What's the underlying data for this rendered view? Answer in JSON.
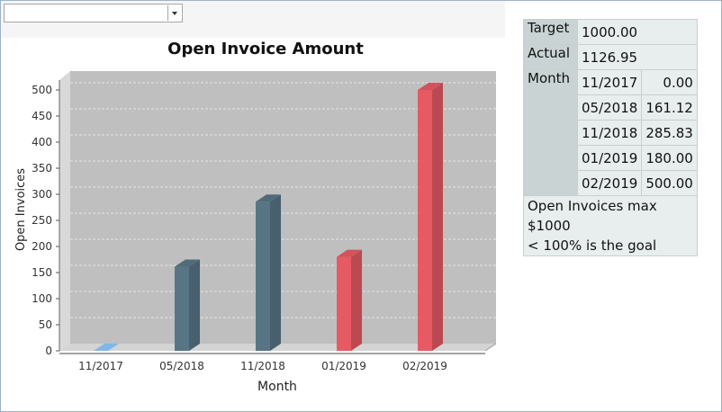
{
  "chart_data": {
    "type": "bar",
    "title": "Open Invoice Amount",
    "xlabel": "Month",
    "ylabel": "Open Invoices",
    "ylim": [
      0,
      500
    ],
    "yticks": [
      "0",
      "50",
      "100",
      "150",
      "200",
      "250",
      "300",
      "350",
      "400",
      "450",
      "500"
    ],
    "categories": [
      "11/2017",
      "05/2018",
      "11/2018",
      "01/2019",
      "02/2019"
    ],
    "values": [
      0.0,
      161.12,
      285.83,
      180.0,
      500.0
    ],
    "bar_colors": [
      "#7fb8e6",
      "#587585",
      "#587585",
      "#e65a63",
      "#e65a63"
    ],
    "grid": true
  },
  "table": {
    "target_label": "Target",
    "target_value": "1000.00",
    "actual_label": "Actual",
    "actual_value": "1126.95",
    "month_label": "Month",
    "rows": [
      {
        "month": "11/2017",
        "amount": "0.00"
      },
      {
        "month": "05/2018",
        "amount": "161.12"
      },
      {
        "month": "11/2018",
        "amount": "285.83"
      },
      {
        "month": "01/2019",
        "amount": "180.00"
      },
      {
        "month": "02/2019",
        "amount": "500.00"
      }
    ],
    "note_lines": [
      "Open Invoices max",
      "$1000",
      "< 100% is the goal"
    ]
  },
  "colors": {
    "plot_bg": "#bfbfbf",
    "positive": "#587585",
    "negative": "#e65a63",
    "neutral": "#7fb8e6"
  }
}
